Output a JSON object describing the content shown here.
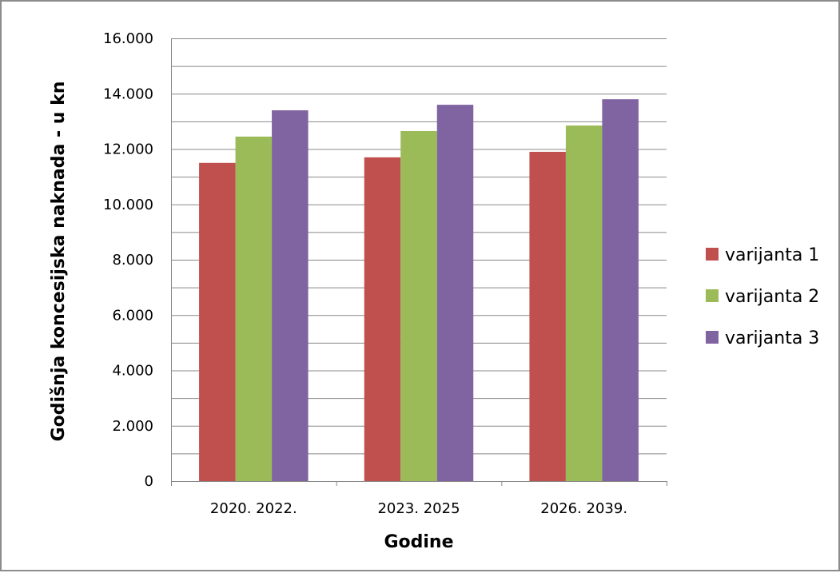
{
  "chart_data": {
    "type": "bar",
    "title": "",
    "categories": [
      "2020. 2022.",
      "2023. 2025",
      "2026. 2039."
    ],
    "series": [
      {
        "name": "varijanta 1",
        "values": [
          11500,
          11700,
          11900
        ],
        "color": "#c0504d"
      },
      {
        "name": "varijanta 2",
        "values": [
          12450,
          12650,
          12850
        ],
        "color": "#9bbb59"
      },
      {
        "name": "varijanta 3",
        "values": [
          13400,
          13600,
          13800
        ],
        "color": "#8064a2"
      }
    ],
    "xlabel": "Godine",
    "ylabel": "Godišnja koncesijska naknada  - u kn",
    "ylim": [
      0,
      16000
    ],
    "yticks": [
      0,
      2000,
      4000,
      6000,
      8000,
      10000,
      12000,
      14000,
      16000
    ],
    "ytick_labels": [
      "0",
      "2.000",
      "4.000",
      "6.000",
      "8.000",
      "10.000",
      "12.000",
      "14.000",
      "16.000"
    ],
    "grid": true,
    "legend_position": "right"
  }
}
